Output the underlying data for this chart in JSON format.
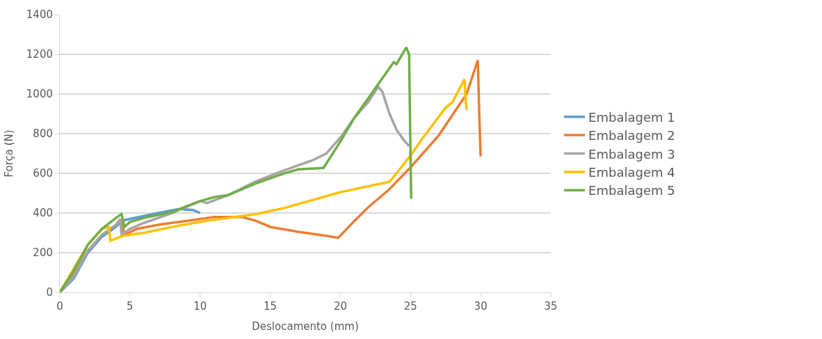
{
  "chart_data": {
    "type": "line",
    "xlabel": "Deslocamento (mm)",
    "ylabel": "Força (N)",
    "xlim": [
      0,
      35
    ],
    "xticks": [
      0,
      5,
      10,
      15,
      20,
      25,
      30,
      35
    ],
    "ylim": [
      0,
      1400
    ],
    "yticks": [
      0,
      200,
      400,
      600,
      800,
      1000,
      1200,
      1400
    ],
    "grid": "y",
    "legend": "right",
    "marker": "none",
    "line_style": "solid",
    "series": [
      {
        "name": "Embalagem 1",
        "color": "#5b9bd5",
        "x": [
          0,
          1,
          2,
          3,
          4,
          4.4,
          5,
          7,
          8.5,
          9.5,
          10
        ],
        "values": [
          0,
          70,
          200,
          280,
          330,
          360,
          370,
          400,
          420,
          415,
          400
        ]
      },
      {
        "name": "Embalagem 2",
        "color": "#ed7d31",
        "x": [
          0,
          1,
          2,
          3,
          4,
          4.4,
          4.6,
          5.5,
          7,
          9,
          11,
          13,
          14,
          15,
          17,
          19,
          19.85,
          21,
          22,
          23.5,
          25,
          27,
          29,
          29.8,
          29.9,
          30
        ],
        "values": [
          0,
          90,
          210,
          290,
          340,
          367,
          290,
          320,
          340,
          360,
          380,
          380,
          360,
          330,
          305,
          285,
          275,
          360,
          430,
          520,
          630,
          790,
          1000,
          1170,
          900,
          685
        ]
      },
      {
        "name": "Embalagem 3",
        "color": "#a5a5a5",
        "x": [
          0,
          1,
          2,
          3,
          4,
          4.3,
          4.4,
          5,
          6,
          8,
          10,
          10.5,
          12,
          14,
          16,
          18,
          19,
          20,
          21,
          22,
          22.7,
          23,
          23.5,
          24,
          24.5,
          24.9
        ],
        "values": [
          0,
          80,
          210,
          290,
          340,
          370,
          290,
          320,
          350,
          400,
          460,
          450,
          490,
          560,
          615,
          665,
          700,
          780,
          880,
          960,
          1037,
          1010,
          900,
          820,
          770,
          737
        ]
      },
      {
        "name": "Embalagem 4",
        "color": "#ffc000",
        "x": [
          0,
          1,
          2,
          3,
          3.5,
          3.6,
          4.5,
          6,
          8,
          10,
          12,
          14,
          16,
          18,
          20,
          22,
          23.5,
          24,
          25,
          26,
          27.5,
          28,
          28.85,
          28.9,
          29
        ],
        "values": [
          0,
          120,
          240,
          320,
          330,
          260,
          285,
          300,
          330,
          355,
          375,
          395,
          425,
          465,
          505,
          535,
          557,
          600,
          690,
          790,
          930,
          960,
          1074,
          1000,
          920
        ]
      },
      {
        "name": "Embalagem 5",
        "color": "#70ad47",
        "x": [
          0,
          1,
          2,
          3,
          4,
          4.4,
          4.6,
          5,
          6,
          8,
          10,
          11,
          12,
          14,
          16,
          17,
          18.8,
          20,
          21,
          22,
          23,
          23.8,
          24,
          24.7,
          24.9,
          25,
          25.05
        ],
        "values": [
          0,
          110,
          240,
          320,
          375,
          395,
          330,
          355,
          375,
          405,
          460,
          480,
          490,
          550,
          600,
          620,
          627,
          760,
          880,
          980,
          1080,
          1160,
          1150,
          1235,
          1200,
          700,
          472
        ]
      }
    ]
  }
}
